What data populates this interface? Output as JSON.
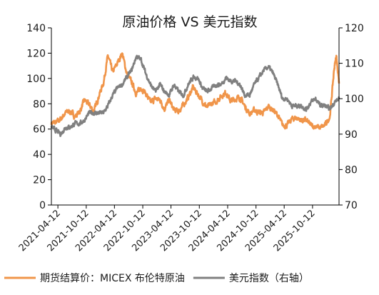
{
  "chart_data": {
    "type": "line",
    "title": "原油价格 VS 美元指数",
    "x_ticks": [
      "2021-04-12",
      "2021-10-12",
      "2022-04-12",
      "2022-10-12",
      "2023-04-12",
      "2023-10-12",
      "2024-04-12",
      "2024-10-12",
      "2025-04-12",
      "2025-10-12"
    ],
    "x_range": [
      "2021-03-01",
      "2026-04-01"
    ],
    "y_left": {
      "ticks": [
        "0",
        "20",
        "40",
        "60",
        "80",
        "100",
        "120",
        "140"
      ],
      "min": 0,
      "max": 140
    },
    "y_right": {
      "ticks": [
        "70",
        "80",
        "90",
        "100",
        "110",
        "120"
      ],
      "min": 70,
      "max": 120
    },
    "legend_position": "bottom",
    "series": [
      {
        "name": "期货结算价：MICEX 布伦特原油",
        "axis": "left",
        "color": "#F0954A",
        "points": [
          [
            "2021-03-01",
            65
          ],
          [
            "2021-04-01",
            65
          ],
          [
            "2021-05-01",
            68
          ],
          [
            "2021-06-01",
            73
          ],
          [
            "2021-07-01",
            74
          ],
          [
            "2021-08-01",
            70
          ],
          [
            "2021-09-01",
            74
          ],
          [
            "2021-10-01",
            83
          ],
          [
            "2021-11-01",
            79
          ],
          [
            "2021-12-01",
            74
          ],
          [
            "2022-01-01",
            86
          ],
          [
            "2022-02-01",
            97
          ],
          [
            "2022-03-01",
            118
          ],
          [
            "2022-04-01",
            105
          ],
          [
            "2022-05-01",
            112
          ],
          [
            "2022-06-01",
            120
          ],
          [
            "2022-07-01",
            104
          ],
          [
            "2022-08-01",
            97
          ],
          [
            "2022-09-01",
            88
          ],
          [
            "2022-10-01",
            93
          ],
          [
            "2022-11-01",
            88
          ],
          [
            "2022-12-01",
            81
          ],
          [
            "2023-01-01",
            84
          ],
          [
            "2023-02-01",
            83
          ],
          [
            "2023-03-01",
            76
          ],
          [
            "2023-04-01",
            83
          ],
          [
            "2023-05-01",
            75
          ],
          [
            "2023-06-01",
            74
          ],
          [
            "2023-07-01",
            79
          ],
          [
            "2023-08-01",
            85
          ],
          [
            "2023-09-01",
            93
          ],
          [
            "2023-10-01",
            88
          ],
          [
            "2023-11-01",
            82
          ],
          [
            "2023-12-01",
            77
          ],
          [
            "2024-01-01",
            80
          ],
          [
            "2024-02-01",
            82
          ],
          [
            "2024-03-01",
            86
          ],
          [
            "2024-04-01",
            89
          ],
          [
            "2024-05-01",
            82
          ],
          [
            "2024-06-01",
            84
          ],
          [
            "2024-07-01",
            85
          ],
          [
            "2024-08-01",
            78
          ],
          [
            "2024-09-01",
            72
          ],
          [
            "2024-10-01",
            75
          ],
          [
            "2024-11-01",
            73
          ],
          [
            "2024-12-01",
            73
          ],
          [
            "2025-01-01",
            78
          ],
          [
            "2025-02-01",
            75
          ],
          [
            "2025-03-01",
            71
          ],
          [
            "2025-04-01",
            63
          ],
          [
            "2025-05-01",
            63
          ],
          [
            "2025-06-01",
            68
          ],
          [
            "2025-07-01",
            69
          ],
          [
            "2025-08-01",
            67
          ],
          [
            "2025-09-01",
            67
          ],
          [
            "2025-10-01",
            63
          ],
          [
            "2025-11-01",
            62
          ],
          [
            "2025-12-01",
            61
          ],
          [
            "2026-01-01",
            63
          ],
          [
            "2026-02-01",
            70
          ],
          [
            "2026-03-01",
            108
          ],
          [
            "2026-03-15",
            118
          ],
          [
            "2026-04-01",
            96
          ]
        ]
      },
      {
        "name": "美元指数（右轴）",
        "axis": "right",
        "color": "#808080",
        "points": [
          [
            "2021-03-01",
            92
          ],
          [
            "2021-04-01",
            91
          ],
          [
            "2021-05-01",
            90
          ],
          [
            "2021-06-01",
            92
          ],
          [
            "2021-07-01",
            92
          ],
          [
            "2021-08-01",
            93
          ],
          [
            "2021-09-01",
            93
          ],
          [
            "2021-10-01",
            94
          ],
          [
            "2021-11-01",
            96
          ],
          [
            "2021-12-01",
            96
          ],
          [
            "2022-01-01",
            96
          ],
          [
            "2022-02-01",
            96
          ],
          [
            "2022-03-01",
            98
          ],
          [
            "2022-04-01",
            101
          ],
          [
            "2022-05-01",
            103
          ],
          [
            "2022-06-01",
            104
          ],
          [
            "2022-07-01",
            106
          ],
          [
            "2022-08-01",
            108
          ],
          [
            "2022-09-01",
            112
          ],
          [
            "2022-10-01",
            111
          ],
          [
            "2022-11-01",
            107
          ],
          [
            "2022-12-01",
            104
          ],
          [
            "2023-01-01",
            102
          ],
          [
            "2023-02-01",
            104
          ],
          [
            "2023-03-01",
            102
          ],
          [
            "2023-04-01",
            101
          ],
          [
            "2023-05-01",
            104
          ],
          [
            "2023-06-01",
            102
          ],
          [
            "2023-07-01",
            101
          ],
          [
            "2023-08-01",
            104
          ],
          [
            "2023-09-01",
            106
          ],
          [
            "2023-10-01",
            106
          ],
          [
            "2023-11-01",
            103
          ],
          [
            "2023-12-01",
            102
          ],
          [
            "2024-01-01",
            103
          ],
          [
            "2024-02-01",
            104
          ],
          [
            "2024-03-01",
            104
          ],
          [
            "2024-04-01",
            106
          ],
          [
            "2024-05-01",
            105
          ],
          [
            "2024-06-01",
            105
          ],
          [
            "2024-07-01",
            104
          ],
          [
            "2024-08-01",
            101
          ],
          [
            "2024-09-01",
            101
          ],
          [
            "2024-10-01",
            104
          ],
          [
            "2024-11-01",
            106
          ],
          [
            "2024-12-01",
            108
          ],
          [
            "2025-01-01",
            109
          ],
          [
            "2025-02-01",
            107
          ],
          [
            "2025-03-01",
            104
          ],
          [
            "2025-04-01",
            100
          ],
          [
            "2025-05-01",
            100
          ],
          [
            "2025-06-01",
            98
          ],
          [
            "2025-07-01",
            98
          ],
          [
            "2025-08-01",
            98
          ],
          [
            "2025-09-01",
            97
          ],
          [
            "2025-10-01",
            99
          ],
          [
            "2025-11-01",
            100
          ],
          [
            "2025-12-01",
            98
          ],
          [
            "2026-01-01",
            98
          ],
          [
            "2026-02-01",
            97
          ],
          [
            "2026-03-01",
            99
          ],
          [
            "2026-04-01",
            100
          ]
        ]
      }
    ]
  }
}
